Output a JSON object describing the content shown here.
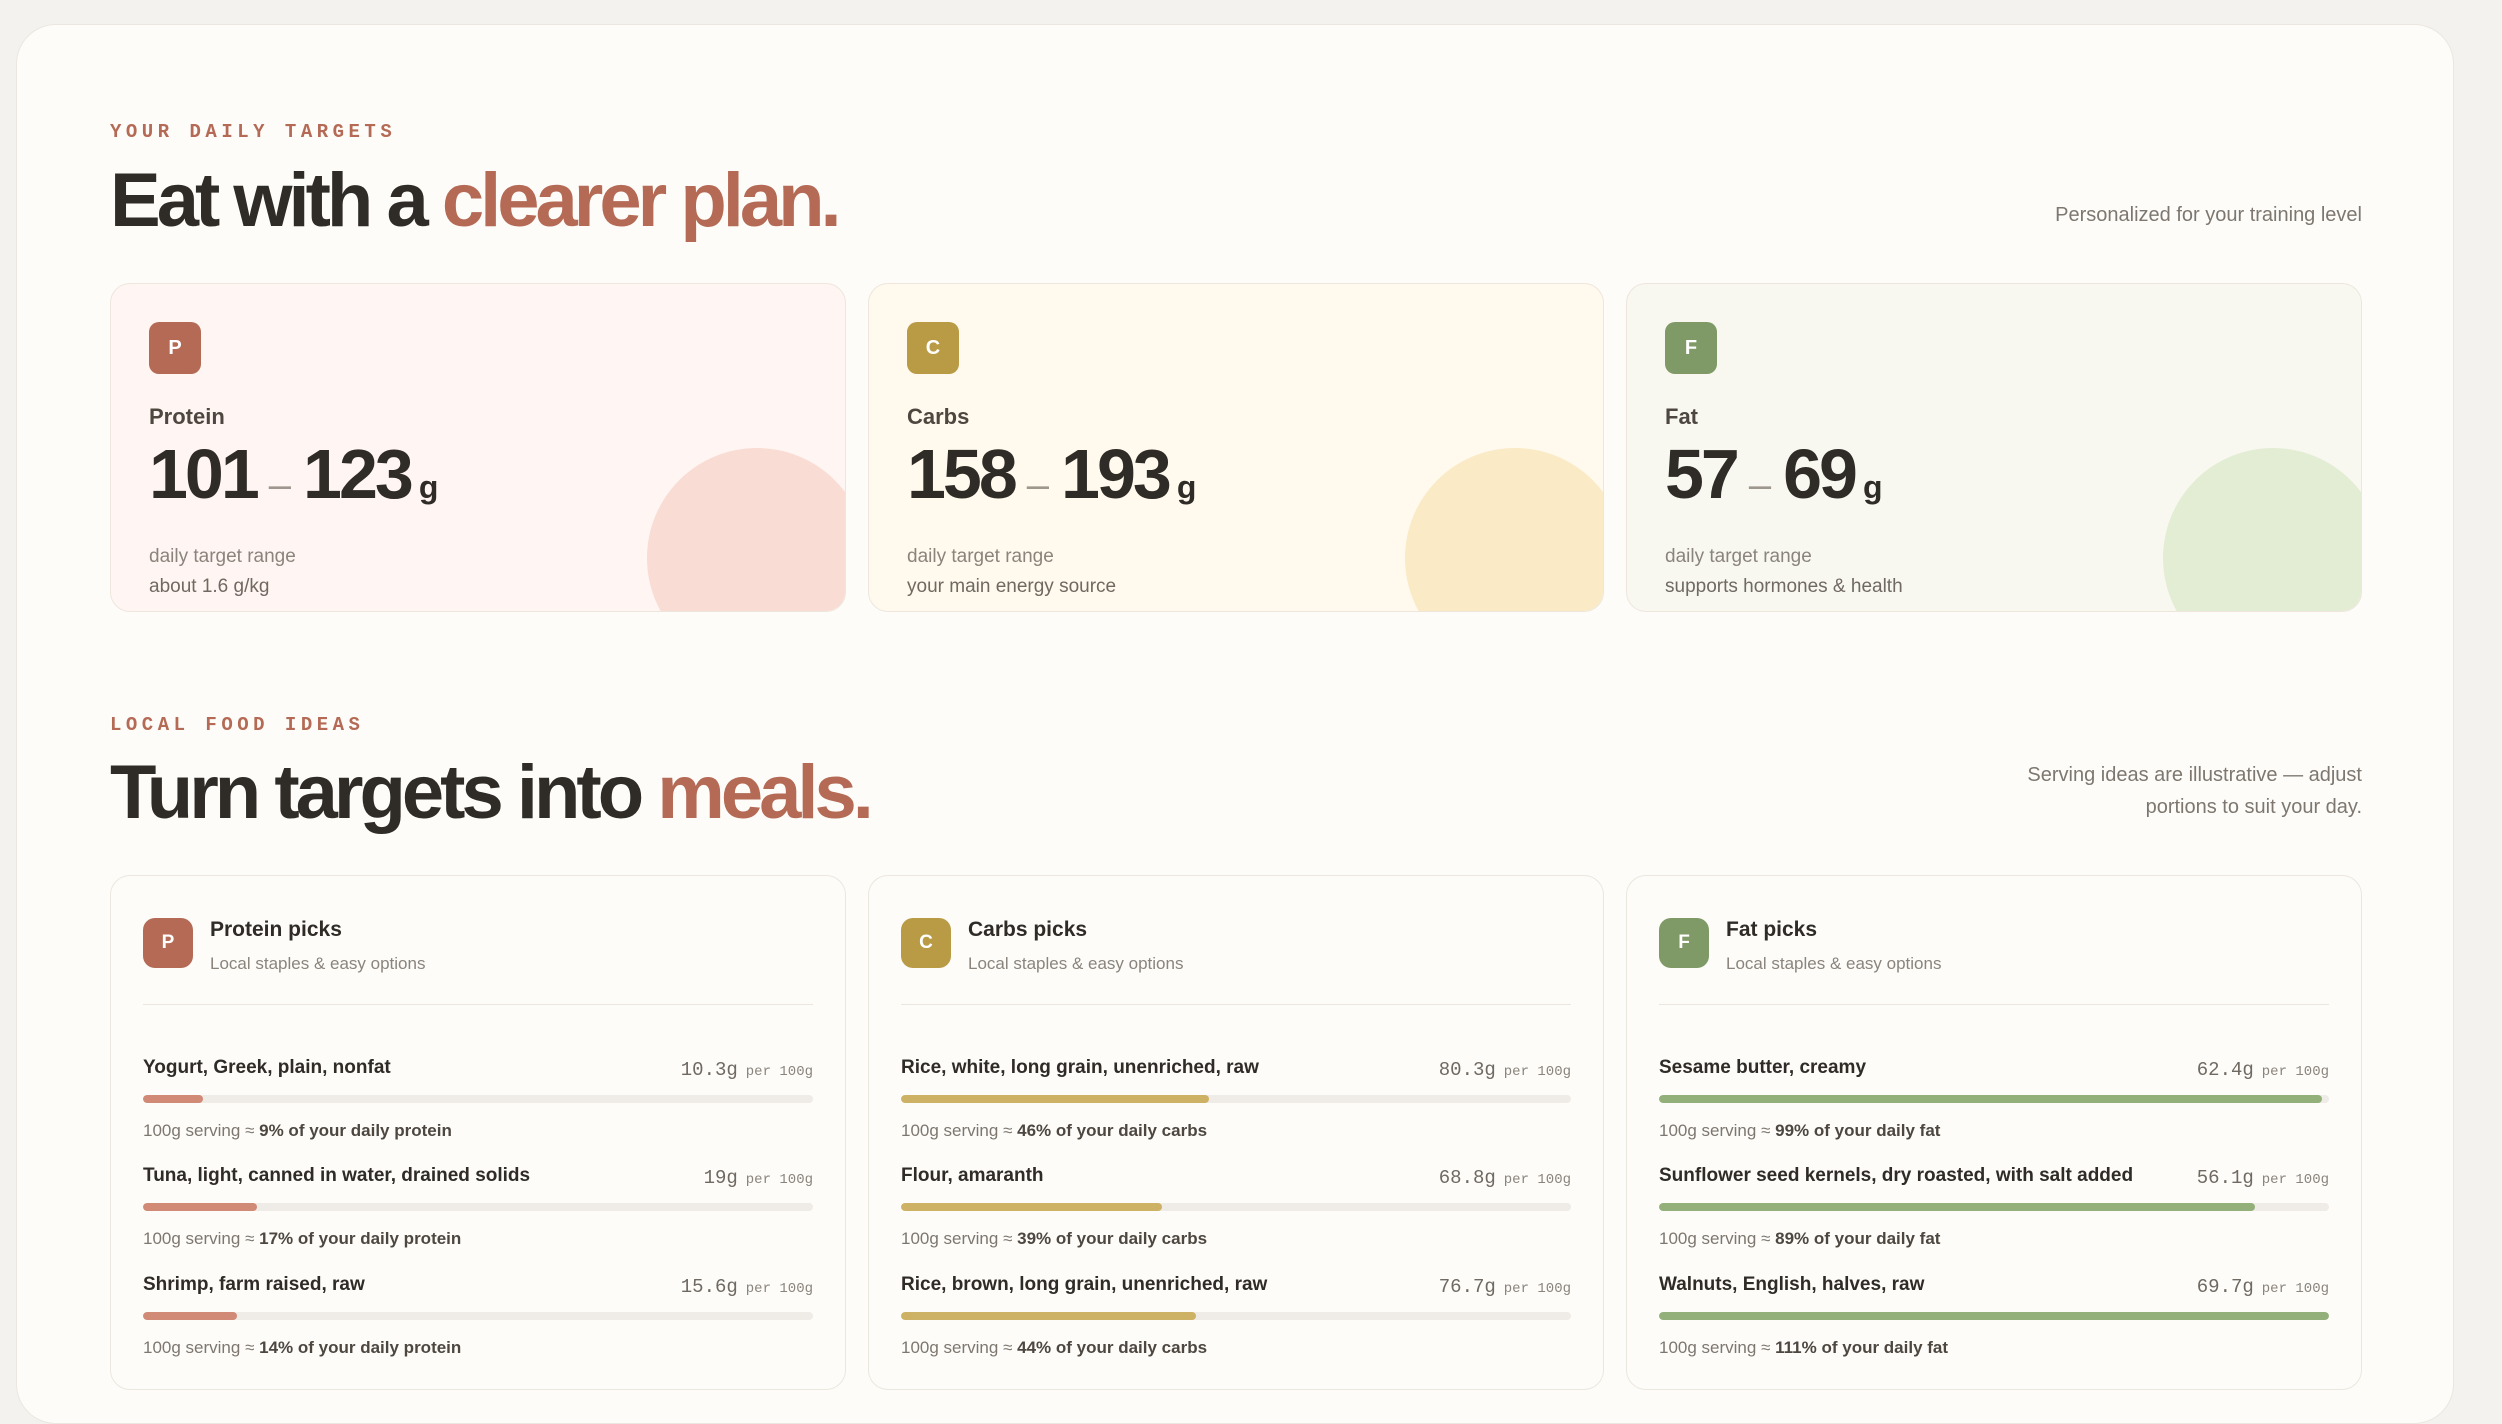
{
  "colors": {
    "accent": "#b46a55",
    "protein": "#b46a55",
    "carbs": "#b99a45",
    "fat": "#7f9a66",
    "protein_bar": "#d08a76",
    "carbs_bar": "#cdb164",
    "fat_bar": "#93b07a"
  },
  "targets_section": {
    "eyebrow": "YOUR DAILY TARGETS",
    "headline_plain": "Eat with a",
    "headline_accent": "clearer plan.",
    "note": "Personalized for your training level"
  },
  "targets": [
    {
      "badge": "P",
      "name": "Protein",
      "low": "101",
      "high": "123",
      "unit": "g",
      "sub1": "daily target range",
      "sub2": "about 1.6 g/kg"
    },
    {
      "badge": "C",
      "name": "Carbs",
      "low": "158",
      "high": "193",
      "unit": "g",
      "sub1": "daily target range",
      "sub2": "your main energy source"
    },
    {
      "badge": "F",
      "name": "Fat",
      "low": "57",
      "high": "69",
      "unit": "g",
      "sub1": "daily target range",
      "sub2": "supports hormones & health"
    }
  ],
  "meals_section": {
    "eyebrow": "LOCAL FOOD IDEAS",
    "headline_plain": "Turn targets into",
    "headline_accent": "meals.",
    "note_line1": "Serving ideas are illustrative — adjust",
    "note_line2": "portions to suit your day."
  },
  "picks": [
    {
      "badge": "P",
      "title": "Protein picks",
      "subtitle": "Local staples & easy options",
      "foods": [
        {
          "name": "Yogurt, Greek, plain, nonfat",
          "amount": "10.3g",
          "per": "per 100g",
          "pct": 9,
          "note_prefix": "100g serving ≈",
          "note_bold": "9% of your daily protein"
        },
        {
          "name": "Tuna, light, canned in water, drained solids",
          "amount": "19g",
          "per": "per 100g",
          "pct": 17,
          "note_prefix": "100g serving ≈",
          "note_bold": "17% of your daily protein"
        },
        {
          "name": "Shrimp, farm raised, raw",
          "amount": "15.6g",
          "per": "per 100g",
          "pct": 14,
          "note_prefix": "100g serving ≈",
          "note_bold": "14% of your daily protein"
        }
      ]
    },
    {
      "badge": "C",
      "title": "Carbs picks",
      "subtitle": "Local staples & easy options",
      "foods": [
        {
          "name": "Rice, white, long grain, unenriched, raw",
          "amount": "80.3g",
          "per": "per 100g",
          "pct": 46,
          "note_prefix": "100g serving ≈",
          "note_bold": "46% of your daily carbs"
        },
        {
          "name": "Flour, amaranth",
          "amount": "68.8g",
          "per": "per 100g",
          "pct": 39,
          "note_prefix": "100g serving ≈",
          "note_bold": "39% of your daily carbs"
        },
        {
          "name": "Rice, brown, long grain, unenriched, raw",
          "amount": "76.7g",
          "per": "per 100g",
          "pct": 44,
          "note_prefix": "100g serving ≈",
          "note_bold": "44% of your daily carbs"
        }
      ]
    },
    {
      "badge": "F",
      "title": "Fat picks",
      "subtitle": "Local staples & easy options",
      "foods": [
        {
          "name": "Sesame butter, creamy",
          "amount": "62.4g",
          "per": "per 100g",
          "pct": 99,
          "note_prefix": "100g serving ≈",
          "note_bold": "99% of your daily fat"
        },
        {
          "name": "Sunflower seed kernels, dry roasted, with salt added",
          "amount": "56.1g",
          "per": "per 100g",
          "pct": 89,
          "note_prefix": "100g serving ≈",
          "note_bold": "89% of your daily fat"
        },
        {
          "name": "Walnuts, English, halves, raw",
          "amount": "69.7g",
          "per": "per 100g",
          "pct": 111,
          "note_prefix": "100g serving ≈",
          "note_bold": "111% of your daily fat"
        }
      ]
    }
  ]
}
